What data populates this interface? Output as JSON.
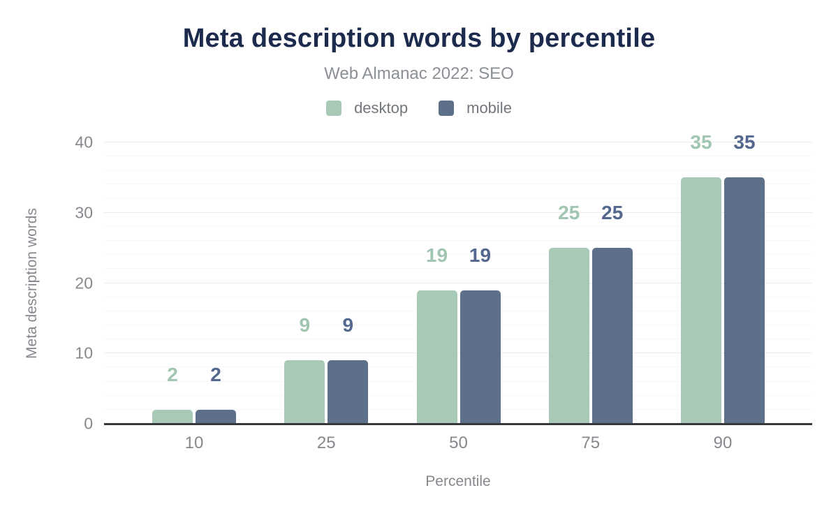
{
  "chart": {
    "title": "Meta description words by percentile",
    "subtitle": "Web Almanac 2022: SEO"
  },
  "colors": {
    "title_text": "#1c2b4d",
    "subtitle_text": "#8b8f96",
    "axis_text": "#85888d",
    "legend_text": "#73777d",
    "axis_line": "#36373a",
    "grid_major": "#ececec",
    "grid_minor": "#f7f7f7",
    "desktop": "#a7c9b6",
    "mobile": "#5e7089",
    "desktop_label": "#a0c5b0",
    "mobile_label": "#54678e"
  },
  "chart_data": {
    "type": "bar",
    "title": "Meta description words by percentile",
    "subtitle": "Web Almanac 2022: SEO",
    "xlabel": "Percentile",
    "ylabel": "Meta description words",
    "categories": [
      "10",
      "25",
      "50",
      "75",
      "90"
    ],
    "series": [
      {
        "name": "desktop",
        "values": [
          2,
          9,
          19,
          25,
          35
        ],
        "color": "#a7c9b6",
        "label_color": "#a0c5b0"
      },
      {
        "name": "mobile",
        "values": [
          2,
          9,
          19,
          25,
          35
        ],
        "color": "#5e7089",
        "label_color": "#54678e"
      }
    ],
    "ylim": [
      0,
      40
    ],
    "y_ticks": [
      0,
      10,
      20,
      30,
      40
    ],
    "y_major_step": 10,
    "y_minor_step": 2,
    "grid": "on",
    "legend_position": "top",
    "value_labels": "above-bars"
  }
}
